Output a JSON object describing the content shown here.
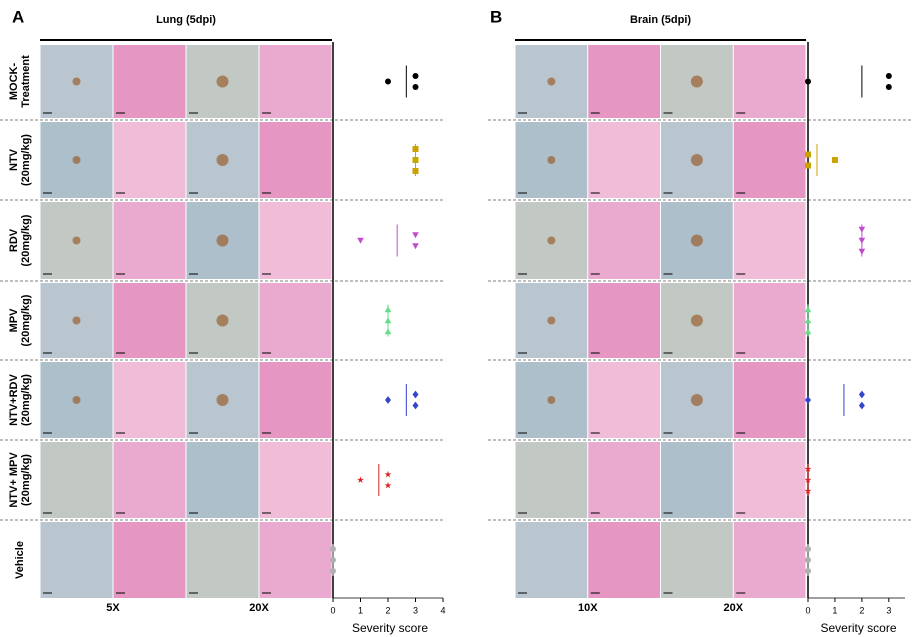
{
  "panels": [
    {
      "label": "A",
      "title": "Lung (5dpi)",
      "magnifications": [
        "5X",
        "20X"
      ]
    },
    {
      "label": "B",
      "title": "Brain (5dpi)",
      "magnifications": [
        "10X",
        "20X"
      ]
    }
  ],
  "row_labels": [
    [
      "MOCK-",
      "Treatment"
    ],
    [
      "NTV",
      "(20mg/kg)"
    ],
    [
      "RDV",
      "(20mg/kg)"
    ],
    [
      "MPV",
      "(20mg/kg)"
    ],
    [
      "NTV+RDV",
      "(20mg/kg)"
    ],
    [
      "NTV+ MPV",
      "(20mg/kg)"
    ],
    [
      "Vehicle"
    ]
  ],
  "chart_data": [
    {
      "type": "strip",
      "xlabel": "Severity score",
      "xlim": [
        0,
        4
      ],
      "xticks": [
        0,
        1,
        2,
        3,
        4
      ],
      "series": [
        {
          "marker": "circle",
          "color": "#000000",
          "values": [
            2,
            3,
            3
          ]
        },
        {
          "marker": "square",
          "color": "#c9a400",
          "values": [
            3,
            3,
            3
          ]
        },
        {
          "marker": "triangle-down",
          "color": "#c04ccc",
          "values": [
            1,
            3,
            3
          ]
        },
        {
          "marker": "triangle-up",
          "color": "#66dd88",
          "values": [
            2,
            2,
            2
          ]
        },
        {
          "marker": "diamond",
          "color": "#3344cc",
          "values": [
            2,
            3,
            3
          ]
        },
        {
          "marker": "star",
          "color": "#e02020",
          "values": [
            1,
            2,
            2
          ]
        },
        {
          "marker": "circle",
          "color": "#b0b0b0",
          "values": [
            0,
            0,
            0
          ]
        }
      ]
    },
    {
      "type": "strip",
      "xlabel": "Severity score",
      "xlim": [
        0,
        3.6
      ],
      "xticks": [
        0,
        1,
        2,
        3
      ],
      "series": [
        {
          "marker": "circle",
          "color": "#000000",
          "values": [
            0,
            3,
            3
          ]
        },
        {
          "marker": "square",
          "color": "#c9a400",
          "values": [
            0,
            0,
            1
          ]
        },
        {
          "marker": "triangle-down",
          "color": "#c04ccc",
          "values": [
            2,
            2,
            2
          ]
        },
        {
          "marker": "triangle-up",
          "color": "#66dd88",
          "values": [
            0,
            0,
            0
          ]
        },
        {
          "marker": "diamond",
          "color": "#3344cc",
          "values": [
            0,
            2,
            2
          ]
        },
        {
          "marker": "star",
          "color": "#e02020",
          "values": [
            0,
            0,
            0
          ]
        },
        {
          "marker": "circle",
          "color": "#b0b0b0",
          "values": [
            0,
            0,
            0
          ]
        }
      ]
    }
  ]
}
